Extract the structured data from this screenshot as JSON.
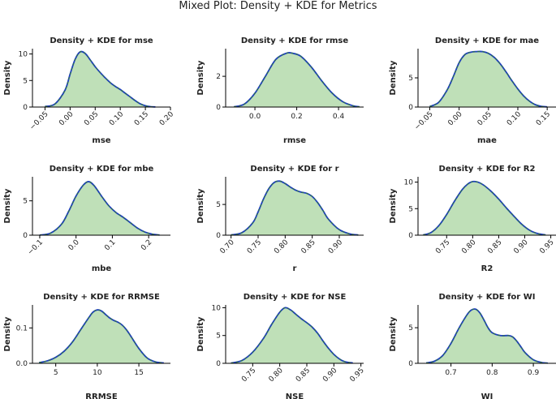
{
  "figure_title": "Mixed Plot: Density + KDE for Metrics",
  "chart_data": [
    {
      "type": "area",
      "title": "Density + KDE for mse",
      "xlabel": "mse",
      "ylabel": "Density",
      "xlim": [
        -0.075,
        0.2
      ],
      "ylim": [
        0,
        11
      ],
      "xticks": [
        -0.05,
        0.0,
        0.05,
        0.1,
        0.15,
        0.2
      ],
      "xtick_labels": [
        "−0.05",
        "0.00",
        "0.05",
        "0.10",
        "0.15",
        "0.20"
      ],
      "xtick_rotation": 45,
      "yticks": [
        0,
        5,
        10
      ],
      "ytick_labels": [
        "0",
        "5",
        "10"
      ],
      "x": [
        -0.05,
        -0.03,
        -0.01,
        0.0,
        0.01,
        0.02,
        0.03,
        0.04,
        0.05,
        0.06,
        0.07,
        0.08,
        0.09,
        0.1,
        0.11,
        0.12,
        0.13,
        0.14,
        0.15,
        0.16,
        0.17
      ],
      "y": [
        0.1,
        0.6,
        3.2,
        6.2,
        9.0,
        10.4,
        10.1,
        8.9,
        7.6,
        6.5,
        5.5,
        4.6,
        3.9,
        3.3,
        2.6,
        1.9,
        1.2,
        0.6,
        0.25,
        0.08,
        0.02
      ]
    },
    {
      "type": "area",
      "title": "Density + KDE for rmse",
      "xlabel": "rmse",
      "ylabel": "Density",
      "xlim": [
        -0.14,
        0.52
      ],
      "ylim": [
        0,
        3.8
      ],
      "xticks": [
        0.0,
        0.2,
        0.4
      ],
      "xtick_labels": [
        "0.0",
        "0.2",
        "0.4"
      ],
      "xtick_rotation": 0,
      "yticks": [
        0,
        2
      ],
      "ytick_labels": [
        "0",
        "2"
      ],
      "x": [
        -0.1,
        -0.05,
        0.0,
        0.05,
        0.1,
        0.15,
        0.18,
        0.22,
        0.27,
        0.32,
        0.37,
        0.42,
        0.47,
        0.5
      ],
      "y": [
        0.02,
        0.2,
        0.9,
        2.0,
        3.1,
        3.5,
        3.5,
        3.3,
        2.6,
        1.7,
        0.9,
        0.35,
        0.08,
        0.02
      ]
    },
    {
      "type": "area",
      "title": "Density + KDE for mae",
      "xlabel": "mae",
      "ylabel": "Density",
      "xlim": [
        -0.07,
        0.165
      ],
      "ylim": [
        0,
        10
      ],
      "xticks": [
        -0.05,
        0.0,
        0.05,
        0.1,
        0.15
      ],
      "xtick_labels": [
        "−0.05",
        "0.00",
        "0.05",
        "0.10",
        "0.15"
      ],
      "xtick_rotation": 45,
      "yticks": [
        0,
        5
      ],
      "ytick_labels": [
        "0",
        "5"
      ],
      "x": [
        -0.05,
        -0.035,
        -0.02,
        -0.01,
        0.0,
        0.01,
        0.02,
        0.03,
        0.04,
        0.05,
        0.06,
        0.07,
        0.08,
        0.09,
        0.1,
        0.11,
        0.12,
        0.13,
        0.14,
        0.15
      ],
      "y": [
        0.1,
        0.8,
        3.0,
        5.2,
        7.6,
        9.0,
        9.4,
        9.5,
        9.5,
        9.2,
        8.5,
        7.4,
        6.0,
        4.5,
        3.1,
        1.9,
        1.0,
        0.4,
        0.12,
        0.03
      ]
    },
    {
      "type": "area",
      "title": "Density + KDE for mbe",
      "xlabel": "mbe",
      "ylabel": "Density",
      "xlim": [
        -0.12,
        0.26
      ],
      "ylim": [
        0,
        8.5
      ],
      "xticks": [
        -0.1,
        0.0,
        0.1,
        0.2
      ],
      "xtick_labels": [
        "−0.1",
        "0.0",
        "0.1",
        "0.2"
      ],
      "xtick_rotation": 45,
      "yticks": [
        0,
        5
      ],
      "ytick_labels": [
        "0",
        "5"
      ],
      "x": [
        -0.1,
        -0.07,
        -0.04,
        -0.02,
        0.0,
        0.02,
        0.035,
        0.05,
        0.07,
        0.09,
        0.11,
        0.13,
        0.15,
        0.17,
        0.19,
        0.21,
        0.23
      ],
      "y": [
        0.02,
        0.3,
        1.6,
        3.5,
        5.7,
        7.3,
        7.8,
        7.2,
        5.7,
        4.3,
        3.3,
        2.6,
        1.8,
        1.0,
        0.45,
        0.15,
        0.03
      ]
    },
    {
      "type": "area",
      "title": "Density + KDE for r",
      "xlabel": "r",
      "ylabel": "Density",
      "xlim": [
        0.69,
        0.945
      ],
      "ylim": [
        0,
        9.5
      ],
      "xticks": [
        0.7,
        0.75,
        0.8,
        0.85,
        0.9
      ],
      "xtick_labels": [
        "0.70",
        "0.75",
        "0.80",
        "0.85",
        "0.90"
      ],
      "xtick_rotation": 45,
      "yticks": [
        0,
        5
      ],
      "ytick_labels": [
        "0",
        "5"
      ],
      "x": [
        0.7,
        0.72,
        0.74,
        0.75,
        0.76,
        0.77,
        0.78,
        0.79,
        0.8,
        0.81,
        0.82,
        0.83,
        0.84,
        0.85,
        0.86,
        0.87,
        0.88,
        0.9,
        0.92,
        0.935
      ],
      "y": [
        0.05,
        0.4,
        2.0,
        3.8,
        5.9,
        7.6,
        8.6,
        8.8,
        8.4,
        7.8,
        7.3,
        7.0,
        6.8,
        6.3,
        5.3,
        4.0,
        2.6,
        0.9,
        0.2,
        0.04
      ]
    },
    {
      "type": "area",
      "title": "Density + KDE for R2",
      "xlabel": "R2",
      "ylabel": "Density",
      "xlim": [
        0.695,
        0.96
      ],
      "ylim": [
        0,
        11
      ],
      "xticks": [
        0.75,
        0.8,
        0.85,
        0.9,
        0.95
      ],
      "xtick_labels": [
        "0.75",
        "0.80",
        "0.85",
        "0.90",
        "0.95"
      ],
      "xtick_rotation": 45,
      "yticks": [
        0,
        5,
        10
      ],
      "ytick_labels": [
        "0",
        "5",
        "10"
      ],
      "x": [
        0.705,
        0.72,
        0.735,
        0.75,
        0.765,
        0.78,
        0.79,
        0.8,
        0.81,
        0.82,
        0.835,
        0.85,
        0.865,
        0.88,
        0.895,
        0.91,
        0.925,
        0.94
      ],
      "y": [
        0.05,
        0.5,
        1.8,
        3.9,
        6.4,
        8.6,
        9.6,
        10.1,
        10.0,
        9.5,
        8.3,
        6.8,
        5.1,
        3.5,
        2.0,
        0.9,
        0.3,
        0.05
      ]
    },
    {
      "type": "area",
      "title": "Density + KDE for RRMSE",
      "xlabel": "RRMSE",
      "ylabel": "Density",
      "xlim": [
        2.2,
        18.8
      ],
      "ylim": [
        0,
        0.165
      ],
      "xticks": [
        5,
        10,
        15
      ],
      "xtick_labels": [
        "5",
        "10",
        "15"
      ],
      "xtick_rotation": 0,
      "yticks": [
        0.0,
        0.1
      ],
      "ytick_labels": [
        "0.0",
        "0.1"
      ],
      "x": [
        3,
        4,
        5,
        6,
        7,
        8,
        9,
        9.5,
        10,
        10.5,
        11,
        11.5,
        12,
        12.5,
        13,
        13.5,
        14,
        15,
        16,
        17,
        18
      ],
      "y": [
        0.002,
        0.007,
        0.017,
        0.034,
        0.06,
        0.095,
        0.13,
        0.145,
        0.151,
        0.148,
        0.138,
        0.128,
        0.121,
        0.116,
        0.108,
        0.095,
        0.078,
        0.042,
        0.015,
        0.004,
        0.001
      ]
    },
    {
      "type": "area",
      "title": "Density + KDE for NSE",
      "xlabel": "NSE",
      "ylabel": "Density",
      "xlim": [
        0.7,
        0.955
      ],
      "ylim": [
        0,
        10.5
      ],
      "xticks": [
        0.75,
        0.8,
        0.85,
        0.9,
        0.95
      ],
      "xtick_labels": [
        "0.75",
        "0.80",
        "0.85",
        "0.90",
        "0.95"
      ],
      "xtick_rotation": 45,
      "yticks": [
        0,
        5,
        10
      ],
      "ytick_labels": [
        "0",
        "5",
        "10"
      ],
      "x": [
        0.71,
        0.73,
        0.75,
        0.77,
        0.785,
        0.8,
        0.81,
        0.82,
        0.83,
        0.84,
        0.85,
        0.86,
        0.87,
        0.88,
        0.89,
        0.9,
        0.91,
        0.92,
        0.935
      ],
      "y": [
        0.05,
        0.5,
        2.0,
        4.5,
        7.0,
        9.2,
        10.0,
        9.6,
        8.8,
        8.0,
        7.3,
        6.5,
        5.4,
        4.0,
        2.7,
        1.6,
        0.8,
        0.3,
        0.06
      ]
    },
    {
      "type": "area",
      "title": "Density + KDE for WI",
      "xlabel": "WI",
      "ylabel": "Density",
      "xlim": [
        0.62,
        0.955
      ],
      "ylim": [
        0,
        8.2
      ],
      "xticks": [
        0.7,
        0.8,
        0.9
      ],
      "xtick_labels": [
        "0.7",
        "0.8",
        "0.9"
      ],
      "xtick_rotation": 0,
      "yticks": [
        0,
        5
      ],
      "ytick_labels": [
        "0",
        "5"
      ],
      "x": [
        0.64,
        0.66,
        0.68,
        0.7,
        0.72,
        0.74,
        0.75,
        0.76,
        0.77,
        0.78,
        0.79,
        0.8,
        0.82,
        0.84,
        0.85,
        0.86,
        0.87,
        0.88,
        0.9,
        0.92,
        0.935
      ],
      "y": [
        0.05,
        0.3,
        1.1,
        2.8,
        5.0,
        6.9,
        7.5,
        7.6,
        7.1,
        6.1,
        5.0,
        4.3,
        3.9,
        3.9,
        3.7,
        3.1,
        2.3,
        1.5,
        0.5,
        0.12,
        0.03
      ]
    }
  ]
}
